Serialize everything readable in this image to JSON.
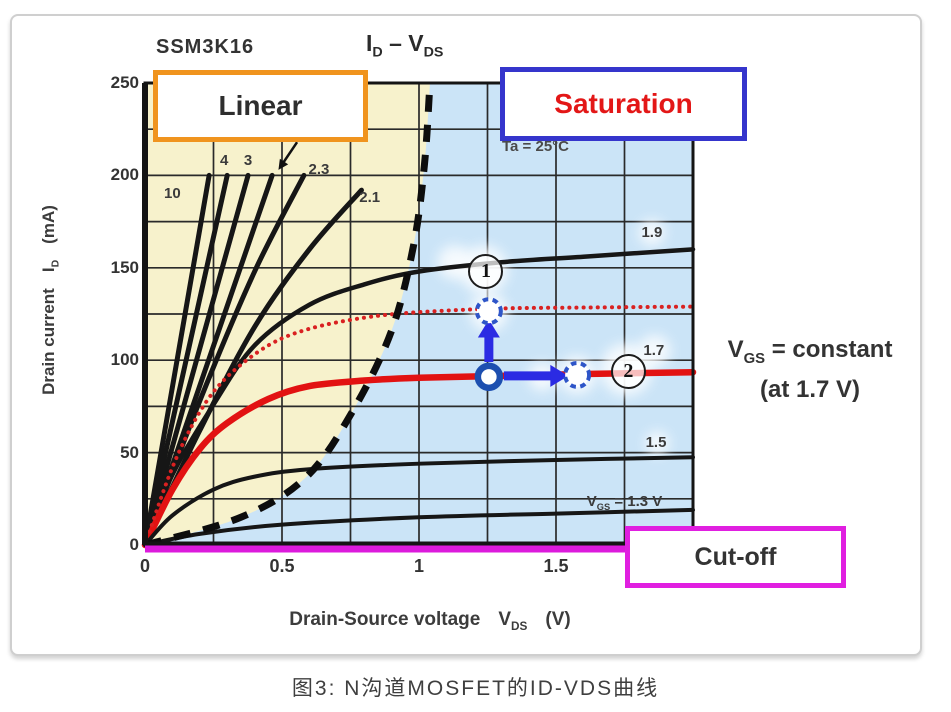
{
  "caption": "图3: N沟道MOSFET的ID-VDS曲线",
  "figure": {
    "device_label": "SSM3K16",
    "title": {
      "sym1": "I",
      "sub1": "D",
      "dash": "–",
      "sym2": "V",
      "sub2": "DS"
    },
    "condition": "Ta = 25°C"
  },
  "regions": {
    "linear": "Linear",
    "saturation": "Saturation",
    "cutoff": "Cut-off"
  },
  "notes": {
    "vgs_sym": "V",
    "vgs_sub": "GS",
    "vgs_rest": " = constant",
    "vgs_line2": "(at 1.7 V)",
    "point1": "1",
    "point2": "2"
  },
  "axes": {
    "x": {
      "name": "Drain-Source voltage",
      "symbol": "V",
      "symbol_sub": "DS",
      "unit": "(V)",
      "min": 0,
      "max": 2,
      "grid_step": 0.25,
      "ticks": [
        {
          "v": 0,
          "label": "0"
        },
        {
          "v": 0.5,
          "label": "0.5"
        },
        {
          "v": 1,
          "label": "1"
        },
        {
          "v": 1.5,
          "label": "1.5"
        }
      ]
    },
    "y": {
      "name": "Drain current",
      "symbol": "I",
      "symbol_sub": "D",
      "unit": "(mA)",
      "min": 0,
      "max": 250,
      "grid_step": 25,
      "ticks": [
        {
          "v": 0,
          "label": "0"
        },
        {
          "v": 50,
          "label": "50"
        },
        {
          "v": 100,
          "label": "100"
        },
        {
          "v": 150,
          "label": "150"
        },
        {
          "v": 200,
          "label": "200"
        },
        {
          "v": 250,
          "label": "250"
        }
      ]
    }
  },
  "colors": {
    "yellow_region": "#F7F2CC",
    "blue_region": "#CBE4F7",
    "curve_black": "#161616",
    "curve_red": "#E21212",
    "dotted_red": "#D92121",
    "boundary_dash": "#0D0D0D",
    "cutoff_magenta": "#DC1ADC",
    "marker_blue": "#1D4FB0",
    "arrow_blue": "#2B2BE3",
    "grid": "#2A2A2A",
    "plot_border": "#141414"
  },
  "chart_data": {
    "type": "line",
    "title": "ID - VDS output characteristics",
    "xlabel": "Drain-Source voltage VDS (V)",
    "ylabel": "Drain current ID (mA)",
    "xlim": [
      0,
      2
    ],
    "ylim": [
      0,
      250
    ],
    "grid": true,
    "series": [
      {
        "name": "VGS=10",
        "style": "black",
        "width": 5,
        "points": [
          [
            0,
            0
          ],
          [
            0.234,
            200
          ]
        ]
      },
      {
        "name": "VGS=4",
        "style": "black",
        "width": 5,
        "points": [
          [
            0,
            0
          ],
          [
            0.3,
            200
          ]
        ]
      },
      {
        "name": "VGS=3",
        "style": "black",
        "width": 5,
        "points": [
          [
            0,
            0
          ],
          [
            0.376,
            200
          ]
        ]
      },
      {
        "name": "VGS=2.5",
        "style": "black",
        "width": 5,
        "points": [
          [
            0,
            0
          ],
          [
            0.464,
            200
          ]
        ]
      },
      {
        "name": "VGS=2.3",
        "style": "black",
        "width": 5,
        "points": [
          [
            0,
            0
          ],
          [
            0.2,
            78
          ],
          [
            0.4,
            148
          ],
          [
            0.58,
            200
          ]
        ]
      },
      {
        "name": "VGS=2.1",
        "style": "black",
        "width": 5,
        "points": [
          [
            0,
            0
          ],
          [
            0.2,
            62
          ],
          [
            0.4,
            118
          ],
          [
            0.6,
            160
          ],
          [
            0.79,
            192
          ]
        ]
      },
      {
        "name": "VGS=1.9",
        "style": "black",
        "width": 4.5,
        "points": [
          [
            0,
            0
          ],
          [
            0.1,
            38
          ],
          [
            0.25,
            76
          ],
          [
            0.4,
            108
          ],
          [
            0.6,
            130
          ],
          [
            0.8,
            141
          ],
          [
            1.0,
            148
          ],
          [
            1.3,
            153
          ],
          [
            1.6,
            156
          ],
          [
            2.0,
            160
          ]
        ]
      },
      {
        "name": "VGS=1.7",
        "style": "red",
        "width": 6.5,
        "points": [
          [
            0,
            0
          ],
          [
            0.1,
            30
          ],
          [
            0.2,
            52
          ],
          [
            0.3,
            66
          ],
          [
            0.45,
            79
          ],
          [
            0.6,
            86
          ],
          [
            0.8,
            89
          ],
          [
            1.0,
            90.5
          ],
          [
            1.3,
            91.5
          ],
          [
            1.6,
            92.5
          ],
          [
            2.0,
            93.5
          ]
        ]
      },
      {
        "name": "VGS increased (dotted)",
        "style": "dotted-red",
        "width": 4,
        "points": [
          [
            0,
            0
          ],
          [
            0.1,
            42
          ],
          [
            0.2,
            72
          ],
          [
            0.3,
            91
          ],
          [
            0.45,
            108
          ],
          [
            0.6,
            117
          ],
          [
            0.8,
            123
          ],
          [
            1.0,
            126
          ],
          [
            1.3,
            128
          ],
          [
            1.6,
            128.5
          ],
          [
            2.0,
            129
          ]
        ]
      },
      {
        "name": "VGS=1.5",
        "style": "black",
        "width": 4,
        "points": [
          [
            0,
            0
          ],
          [
            0.1,
            16
          ],
          [
            0.25,
            30
          ],
          [
            0.4,
            37
          ],
          [
            0.6,
            41
          ],
          [
            1.0,
            44
          ],
          [
            1.5,
            46
          ],
          [
            2.0,
            47.5
          ]
        ]
      },
      {
        "name": "VGS=1.3",
        "style": "black",
        "width": 4,
        "points": [
          [
            0,
            0
          ],
          [
            0.2,
            6
          ],
          [
            0.5,
            11
          ],
          [
            1.0,
            15
          ],
          [
            1.5,
            17
          ],
          [
            2.0,
            19
          ]
        ]
      }
    ],
    "boundary": {
      "name": "linear-saturation boundary (dashed)",
      "points": [
        [
          0,
          0
        ],
        [
          0.35,
          15
        ],
        [
          0.59,
          37
        ],
        [
          0.76,
          73
        ],
        [
          0.9,
          116
        ],
        [
          0.98,
          162
        ],
        [
          1.02,
          206
        ],
        [
          1.04,
          250
        ]
      ]
    },
    "cutoff_line": {
      "name": "cut-off (ID=0)",
      "points": [
        [
          0,
          0
        ],
        [
          1.79,
          0
        ]
      ]
    },
    "curve_labels": [
      {
        "text": "10",
        "v": 0.1,
        "i": 190
      },
      {
        "text": "4",
        "v": 0.289,
        "i": 208
      },
      {
        "text": "3",
        "v": 0.376,
        "i": 208
      },
      {
        "text": "2.3",
        "v": 0.635,
        "i": 203
      },
      {
        "text": "2.1",
        "v": 0.82,
        "i": 188
      },
      {
        "text": "1.9",
        "v": 1.85,
        "i": 169
      },
      {
        "text": "1.7",
        "v": 1.857,
        "i": 105
      },
      {
        "text": "1.5",
        "v": 1.865,
        "i": 55
      },
      {
        "text": "VGS = 1.3 V",
        "v": 1.75,
        "i": 23,
        "w": 150,
        "parts": [
          {
            "t": "V"
          },
          {
            "t": "GS",
            "sub": true
          },
          {
            "t": " = 1.3 V"
          }
        ]
      }
    ],
    "markers": [
      {
        "kind": "solid-circle",
        "v": 1.255,
        "i": 91
      },
      {
        "kind": "dashed-circle",
        "v": 1.255,
        "i": 126.5
      },
      {
        "kind": "dashed-circle",
        "v": 1.577,
        "i": 92
      }
    ],
    "arrows": [
      {
        "name": "id-increase-arrow",
        "tail": [
          1.255,
          99
        ],
        "head": [
          1.255,
          122
        ]
      },
      {
        "name": "vds-increase-arrow",
        "tail": [
          1.31,
          91.5
        ],
        "head": [
          1.545,
          91.5
        ]
      }
    ],
    "circled_points": [
      {
        "text": "1",
        "v": 1.237,
        "i": 149
      },
      {
        "text": "2",
        "v": 1.757,
        "i": 95
      }
    ],
    "pointer_arrow": {
      "tail": [
        0.555,
        218
      ],
      "head": [
        0.487,
        203
      ]
    },
    "glows": [
      {
        "v": 1.237,
        "i": 149,
        "r": 24
      },
      {
        "v": 1.255,
        "i": 126,
        "r": 19
      },
      {
        "v": 1.577,
        "i": 92,
        "r": 19
      },
      {
        "v": 1.757,
        "i": 95,
        "r": 26
      },
      {
        "v": 1.86,
        "i": 105,
        "r": 16
      },
      {
        "v": 1.13,
        "i": 153,
        "r": 17
      },
      {
        "v": 1.45,
        "i": 91,
        "r": 14
      },
      {
        "v": 1.85,
        "i": 169,
        "r": 13
      },
      {
        "v": 1.87,
        "i": 55,
        "r": 12
      }
    ]
  }
}
